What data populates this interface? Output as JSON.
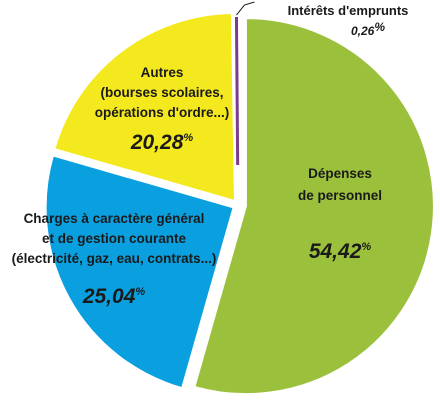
{
  "chart_data": {
    "type": "pie",
    "slices": [
      {
        "name_lines": [
          "Dépenses",
          "de personnel"
        ],
        "value_label": "54,42",
        "unit": "%",
        "value": 54.42,
        "color": "#9bc13c"
      },
      {
        "name_lines": [
          "Charges à caractère général",
          "et de gestion courante",
          "(électricité, gaz, eau, contrats...)"
        ],
        "value_label": "25,04",
        "unit": "%",
        "value": 25.04,
        "color": "#0aa0df"
      },
      {
        "name_lines": [
          "Autres",
          "(bourses scolaires,",
          "opérations d'ordre...)"
        ],
        "value_label": "20,28",
        "unit": "%",
        "value": 20.28,
        "color": "#f4e81e"
      },
      {
        "name_lines": [
          "Intérêts d'emprunts"
        ],
        "value_label": "0,26",
        "unit": "%",
        "value": 0.26,
        "color": "#7b3c8e"
      }
    ]
  }
}
